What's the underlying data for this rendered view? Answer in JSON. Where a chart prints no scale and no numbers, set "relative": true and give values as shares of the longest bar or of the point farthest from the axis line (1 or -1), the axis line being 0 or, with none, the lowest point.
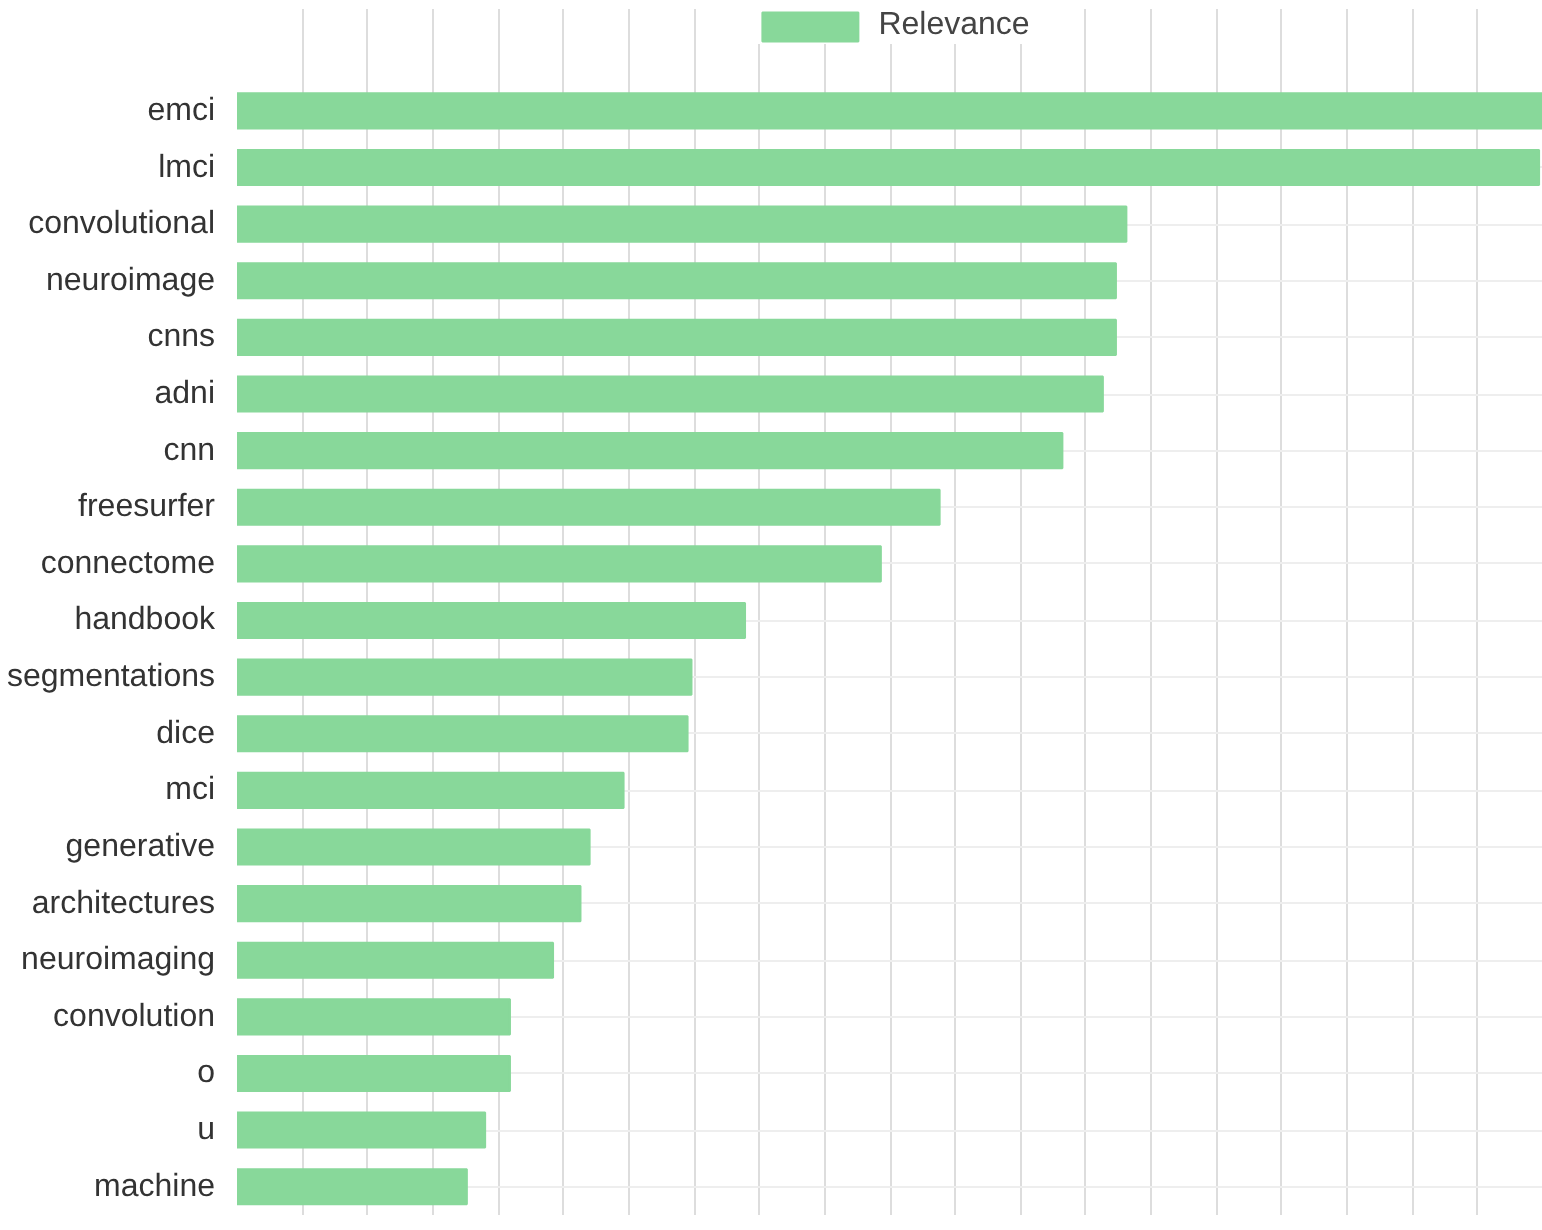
{
  "chart_data": {
    "type": "bar",
    "orientation": "horizontal",
    "relative": true,
    "grid": true,
    "legend": "top",
    "categories": [
      "emci",
      "lmci",
      "convolutional",
      "neuroimage",
      "cnns",
      "adni",
      "cnn",
      "freesurfer",
      "connectome",
      "handbook",
      "segmentations",
      "dice",
      "mci",
      "generative",
      "architectures",
      "neuroimaging",
      "convolution",
      "o",
      "u",
      "machine"
    ],
    "series": [
      {
        "name": "Relevance",
        "color": "#88d89a",
        "values": [
          1,
          0.997,
          0.681,
          0.673,
          0.673,
          0.663,
          0.632,
          0.538,
          0.493,
          0.389,
          0.348,
          0.345,
          0.296,
          0.27,
          0.263,
          0.242,
          0.209,
          0.209,
          0.19,
          0.176
        ]
      }
    ]
  }
}
